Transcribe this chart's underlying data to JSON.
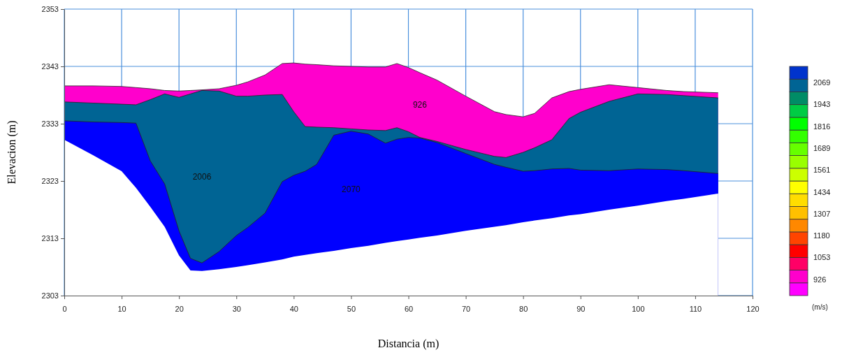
{
  "chart_data": {
    "type": "area",
    "xlabel": "Distancia (m)",
    "ylabel": "Elevacion (m)",
    "clabel": "(m/s)",
    "xlim": [
      0,
      120
    ],
    "xticks": [
      0,
      10,
      20,
      30,
      40,
      50,
      60,
      70,
      80,
      90,
      100,
      110,
      120
    ],
    "ylim": [
      2303,
      2353
    ],
    "yticks": [
      2303,
      2313,
      2323,
      2333,
      2343,
      2353
    ],
    "clim": [
      831,
      2164
    ],
    "cticks": [
      926,
      1053,
      1180,
      1307,
      1434,
      1561,
      1689,
      1816,
      1943,
      2069
    ],
    "grid": true,
    "x": [
      0,
      5,
      10,
      12.5,
      15,
      17.5,
      20,
      22,
      24,
      27,
      30,
      32,
      35,
      38,
      40,
      42,
      44,
      47,
      50,
      53,
      56,
      58,
      60,
      62,
      65,
      70,
      75,
      77,
      80,
      82,
      85,
      88,
      90,
      95,
      100,
      105,
      108,
      114
    ],
    "series": [
      {
        "name": "926",
        "color": "#ff00cc",
        "values": [
          2339.6,
          2339.6,
          2339.5,
          2339.3,
          2339.1,
          2338.8,
          2338.7,
          2338.8,
          2338.9,
          2339.1,
          2339.7,
          2340.3,
          2341.5,
          2343.5,
          2343.6,
          2343.4,
          2343.3,
          2343.1,
          2343,
          2342.9,
          2342.9,
          2343.5,
          2342.8,
          2341.9,
          2340.6,
          2337.8,
          2335.1,
          2334.6,
          2334.2,
          2334.8,
          2337.5,
          2338.6,
          2339,
          2339.8,
          2339.3,
          2338.8,
          2338.6,
          2338.4
        ]
      },
      {
        "name": "2006",
        "color": "#006494",
        "values": [
          2336.8,
          2336.6,
          2336.4,
          2336.3,
          2337.2,
          2338.2,
          2337.6,
          2338.2,
          2338.8,
          2338.7,
          2337.8,
          2337.8,
          2338,
          2338.1,
          2335.1,
          2332.5,
          2332.4,
          2332.3,
          2332.1,
          2331.9,
          2331.8,
          2332.3,
          2331.6,
          2330.6,
          2329.9,
          2328.5,
          2327.3,
          2327.1,
          2328,
          2328.8,
          2330.2,
          2333.9,
          2335,
          2336.9,
          2338.2,
          2338.1,
          2337.9,
          2337.5
        ]
      },
      {
        "name": "2070",
        "color": "#0000ff",
        "values": [
          2333.5,
          2333.3,
          2333.2,
          2333.1,
          2326.5,
          2322.5,
          2314.3,
          2309.5,
          2308.7,
          2310.7,
          2313.5,
          2314.9,
          2317.4,
          2322.9,
          2324,
          2324.7,
          2325.9,
          2331,
          2331.7,
          2331.2,
          2329.6,
          2330.3,
          2330.6,
          2330.5,
          2329.7,
          2327.8,
          2325.9,
          2325.4,
          2324.7,
          2324.8,
          2325.1,
          2325.2,
          2324.9,
          2324.8,
          2325.1,
          2325,
          2324.8,
          2324.3
        ]
      },
      {
        "color": "#ffffff",
        "values": [
          2330.2,
          2327.5,
          2324.7,
          2321.8,
          2318.5,
          2315,
          2310,
          2307.4,
          2307.3,
          2307.6,
          2308,
          2308.3,
          2308.8,
          2309.3,
          2309.8,
          2310.1,
          2310.4,
          2310.8,
          2311.3,
          2311.7,
          2312.2,
          2312.5,
          2312.8,
          2313.1,
          2313.5,
          2314.3,
          2315,
          2315.3,
          2315.8,
          2316.1,
          2316.5,
          2317,
          2317.2,
          2318,
          2318.7,
          2319.5,
          2319.9,
          2320.8
        ]
      }
    ]
  }
}
